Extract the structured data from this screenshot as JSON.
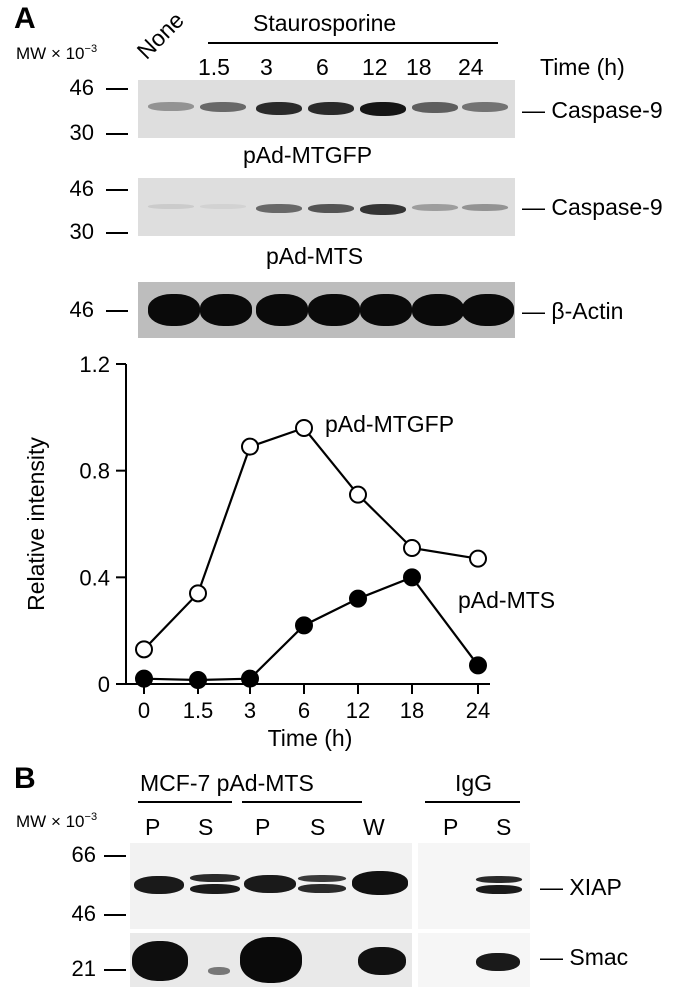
{
  "panel_a": {
    "letter": "A",
    "mw_label": "MW",
    "mw_exp": "× 10",
    "mw_sup": "−3",
    "treatment": "Staurosporine",
    "none_label": "None",
    "time_label": "Time (h)",
    "time_points": [
      "1.5",
      "3",
      "6",
      "12",
      "18",
      "24"
    ],
    "blot1": {
      "marker_top": "46",
      "marker_bottom": "30",
      "protein": "— Caspase-9",
      "caption": "pAd-MTGFP",
      "intensities": [
        0.35,
        0.55,
        0.85,
        0.85,
        0.95,
        0.6,
        0.5
      ]
    },
    "blot2": {
      "marker_top": "46",
      "marker_bottom": "30",
      "protein": "— Caspase-9",
      "caption": "pAd-MTS",
      "intensities": [
        0.08,
        0.05,
        0.55,
        0.65,
        0.8,
        0.3,
        0.35
      ]
    },
    "blot3": {
      "marker": "46",
      "protein": "— β-Actin",
      "intensities": [
        1,
        1,
        1,
        1,
        1,
        1,
        1
      ]
    }
  },
  "chart_data": {
    "type": "line",
    "categories": [
      "0",
      "1.5",
      "3",
      "6",
      "12",
      "18",
      "24"
    ],
    "xlabel": "Time (h)",
    "ylabel": "Relative intensity",
    "ylim": [
      0,
      1.2
    ],
    "yticks": [
      "0",
      "0.4",
      "0.8",
      "1.2"
    ],
    "series": [
      {
        "name": "pAd-MTGFP",
        "marker": "open-circle",
        "values": [
          0.13,
          0.34,
          0.89,
          0.96,
          0.71,
          0.51,
          0.47
        ]
      },
      {
        "name": "pAd-MTS",
        "marker": "filled-circle",
        "values": [
          0.02,
          0.015,
          0.02,
          0.22,
          0.32,
          0.4,
          0.07
        ]
      }
    ]
  },
  "panel_b": {
    "letter": "B",
    "mw_label": "MW",
    "mw_exp": "× 10",
    "mw_sup": "−3",
    "group1": "MCF-7 pAd-MTS",
    "group2": "IgG",
    "lanes_left": [
      "P",
      "S",
      "P",
      "S",
      "W"
    ],
    "lanes_right": [
      "P",
      "S"
    ],
    "markers": [
      "66",
      "46",
      "21"
    ],
    "xiap": "— XIAP",
    "smac": "— Smac"
  }
}
